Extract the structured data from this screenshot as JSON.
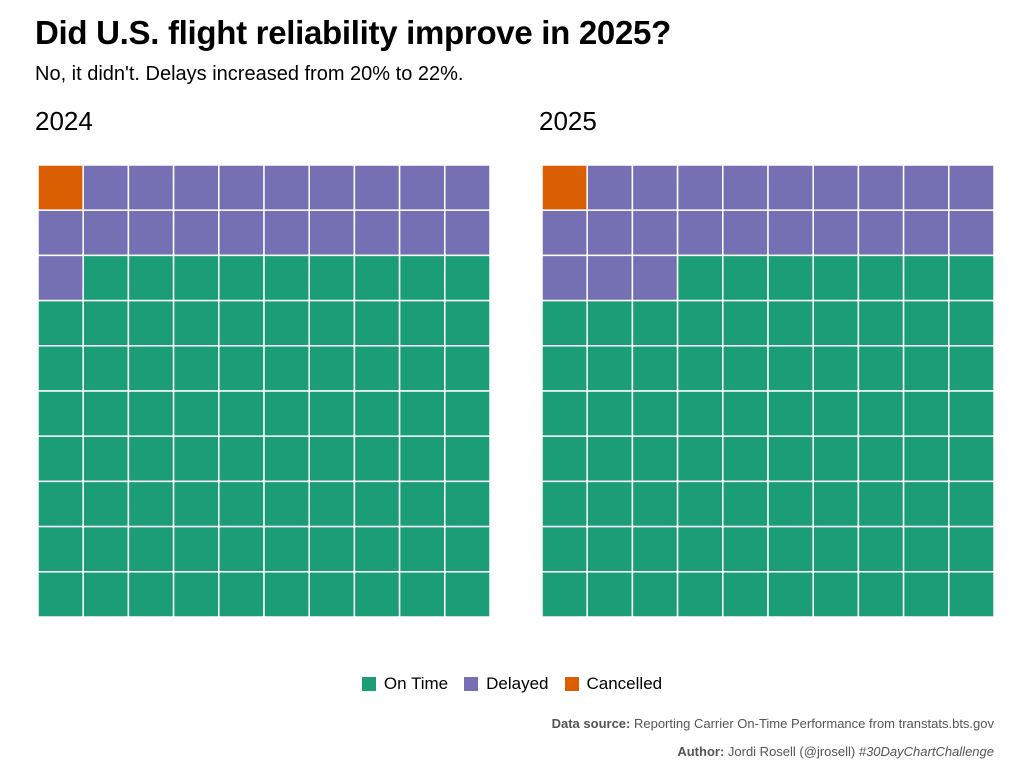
{
  "title": "Did U.S. flight reliability improve in 2025?",
  "subtitle": "No, it didn't. Delays increased from 20% to 22%.",
  "chart_data": [
    {
      "type": "waffle",
      "title": "2024",
      "grid": [
        10,
        10
      ],
      "fill_order": "row-wise from top-left",
      "series": [
        {
          "name": "Cancelled",
          "value": 1,
          "color": "#D95F02"
        },
        {
          "name": "Delayed",
          "value": 20,
          "color": "#7570B3"
        },
        {
          "name": "On Time",
          "value": 79,
          "color": "#1B9E77"
        }
      ]
    },
    {
      "type": "waffle",
      "title": "2025",
      "grid": [
        10,
        10
      ],
      "fill_order": "row-wise from top-left",
      "series": [
        {
          "name": "Cancelled",
          "value": 1,
          "color": "#D95F02"
        },
        {
          "name": "Delayed",
          "value": 22,
          "color": "#7570B3"
        },
        {
          "name": "On Time",
          "value": 77,
          "color": "#1B9E77"
        }
      ]
    }
  ],
  "legend": {
    "placement": "bottom",
    "items": [
      {
        "label": "On Time",
        "color": "#1B9E77"
      },
      {
        "label": "Delayed",
        "color": "#7570B3"
      },
      {
        "label": "Cancelled",
        "color": "#D95F02"
      }
    ]
  },
  "caption": {
    "source_label": "Data source:",
    "source_text": " Reporting Carrier On-Time Performance from transtats.bts.gov",
    "author_label": "Author:",
    "author_text": " Jordi Rosell (@jrosell) ",
    "hashtag": "#30DayChartChallenge"
  }
}
